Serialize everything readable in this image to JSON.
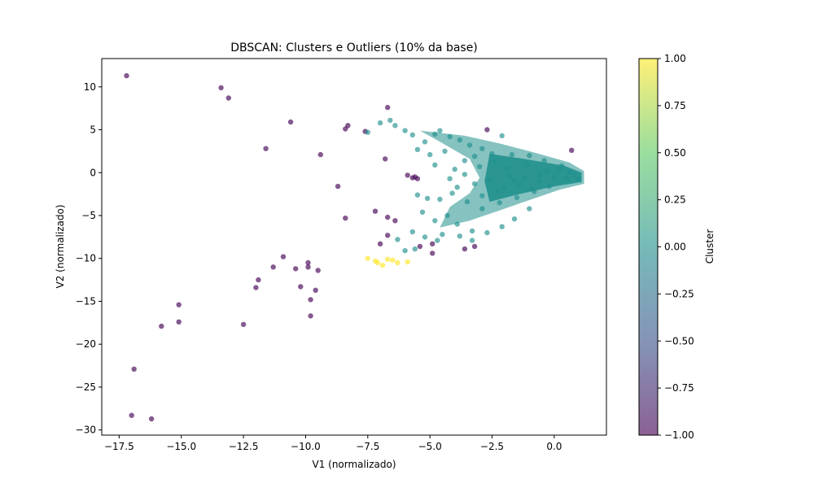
{
  "chart_data": {
    "type": "scatter",
    "title": "DBSCAN: Clusters e Outliers (10% da base)",
    "xlabel": "V1 (normalizado)",
    "ylabel": "V2 (normalizado)",
    "xlim": [
      -18.2,
      2.1
    ],
    "ylim": [
      -30.6,
      13.3
    ],
    "xticks": [
      -17.5,
      -15.0,
      -12.5,
      -10.0,
      -7.5,
      -5.0,
      -2.5,
      0.0
    ],
    "xtick_labels": [
      "−17.5",
      "−15.0",
      "−12.5",
      "−10.0",
      "−7.5",
      "−5.0",
      "−2.5",
      "0.0"
    ],
    "yticks": [
      10,
      5,
      0,
      -5,
      -10,
      -15,
      -20,
      -25,
      -30
    ],
    "ytick_labels": [
      "10",
      "5",
      "0",
      "−5",
      "−10",
      "−15",
      "−20",
      "−25",
      "−30"
    ],
    "grid": false,
    "colorbar": {
      "label": "Cluster",
      "range": [
        -1.0,
        1.0
      ],
      "ticks": [
        1.0,
        0.75,
        0.5,
        0.25,
        0.0,
        -0.25,
        -0.5,
        -0.75,
        -1.0
      ],
      "tick_labels": [
        "1.00",
        "0.75",
        "0.50",
        "0.25",
        "0.00",
        "−0.25",
        "−0.50",
        "−0.75",
        "−1.00"
      ],
      "colormap": [
        "#440154",
        "#3b528b",
        "#21908d",
        "#5dc963",
        "#fde725"
      ]
    },
    "series": [
      {
        "cluster": -1,
        "color": "#440154",
        "points": [
          [
            -17.2,
            11.3
          ],
          [
            -13.4,
            9.9
          ],
          [
            -13.1,
            8.7
          ],
          [
            -10.6,
            5.9
          ],
          [
            -11.6,
            2.8
          ],
          [
            -9.4,
            2.1
          ],
          [
            -8.3,
            5.5
          ],
          [
            -8.4,
            5.1
          ],
          [
            -7.6,
            4.8
          ],
          [
            -6.7,
            7.6
          ],
          [
            -2.7,
            5.0
          ],
          [
            0.7,
            2.6
          ],
          [
            -6.8,
            1.6
          ],
          [
            -5.9,
            -0.3
          ],
          [
            -5.6,
            -0.5
          ],
          [
            -5.7,
            -0.6
          ],
          [
            -5.5,
            -0.7
          ],
          [
            -8.7,
            -1.6
          ],
          [
            -7.2,
            -4.5
          ],
          [
            -6.7,
            -5.2
          ],
          [
            -6.4,
            -5.6
          ],
          [
            -8.4,
            -5.3
          ],
          [
            -6.7,
            -7.3
          ],
          [
            -7.0,
            -8.3
          ],
          [
            -4.9,
            -8.3
          ],
          [
            -5.4,
            -8.6
          ],
          [
            -4.9,
            -9.4
          ],
          [
            -3.2,
            -8.6
          ],
          [
            -3.6,
            -8.9
          ],
          [
            -10.9,
            -9.8
          ],
          [
            -11.3,
            -11.0
          ],
          [
            -10.4,
            -11.2
          ],
          [
            -9.9,
            -10.5
          ],
          [
            -9.9,
            -11.0
          ],
          [
            -9.5,
            -11.4
          ],
          [
            -11.9,
            -12.5
          ],
          [
            -12.0,
            -13.4
          ],
          [
            -10.2,
            -13.3
          ],
          [
            -9.6,
            -13.7
          ],
          [
            -9.8,
            -14.8
          ],
          [
            -15.1,
            -15.4
          ],
          [
            -15.8,
            -17.9
          ],
          [
            -15.1,
            -17.4
          ],
          [
            -12.5,
            -17.7
          ],
          [
            -9.8,
            -16.7
          ],
          [
            -16.9,
            -22.9
          ],
          [
            -17.0,
            -28.3
          ],
          [
            -16.2,
            -28.7
          ]
        ]
      },
      {
        "cluster": 0,
        "color": "#21908d",
        "points": [
          [
            -7.5,
            4.7
          ],
          [
            -7.0,
            5.8
          ],
          [
            -6.6,
            6.1
          ],
          [
            -6.4,
            5.5
          ],
          [
            -6.0,
            4.9
          ],
          [
            -5.7,
            4.4
          ],
          [
            -5.2,
            3.6
          ],
          [
            -5.5,
            2.7
          ],
          [
            -4.8,
            4.5
          ],
          [
            -4.6,
            4.9
          ],
          [
            -4.2,
            4.2
          ],
          [
            -3.8,
            3.8
          ],
          [
            -3.4,
            3.2
          ],
          [
            -2.9,
            2.8
          ],
          [
            -2.1,
            4.3
          ],
          [
            -1.7,
            2.1
          ],
          [
            -4.8,
            0.9
          ],
          [
            -4.0,
            0.4
          ],
          [
            -3.6,
            1.4
          ],
          [
            -3.0,
            0.7
          ],
          [
            -5.0,
            2.1
          ],
          [
            -4.4,
            2.5
          ],
          [
            -3.2,
            1.9
          ],
          [
            -2.4,
            1.3
          ],
          [
            -4.2,
            -0.7
          ],
          [
            -3.6,
            -0.2
          ],
          [
            -3.2,
            -1.3
          ],
          [
            -2.6,
            -0.9
          ],
          [
            -1.8,
            -0.4
          ],
          [
            -1.2,
            -0.6
          ],
          [
            -0.6,
            -0.3
          ],
          [
            0.0,
            -0.5
          ],
          [
            0.5,
            -0.7
          ],
          [
            1.0,
            -0.7
          ],
          [
            0.3,
            0.8
          ],
          [
            -0.4,
            1.4
          ],
          [
            -1.0,
            2.0
          ],
          [
            -0.2,
            -1.6
          ],
          [
            -0.8,
            -2.2
          ],
          [
            -1.5,
            -2.9
          ],
          [
            -2.2,
            -3.5
          ],
          [
            -2.9,
            -4.2
          ],
          [
            -3.5,
            -3.4
          ],
          [
            -4.1,
            -2.4
          ],
          [
            -4.6,
            -3.1
          ],
          [
            -5.1,
            -3.0
          ],
          [
            -5.5,
            -2.6
          ],
          [
            -5.3,
            -4.6
          ],
          [
            -4.8,
            -5.6
          ],
          [
            -4.3,
            -5.0
          ],
          [
            -3.9,
            -6.0
          ],
          [
            -3.3,
            -6.8
          ],
          [
            -2.7,
            -7.0
          ],
          [
            -2.1,
            -6.3
          ],
          [
            -1.6,
            -5.4
          ],
          [
            -1.0,
            -4.2
          ],
          [
            -5.7,
            -6.9
          ],
          [
            -5.2,
            -7.5
          ],
          [
            -4.7,
            -7.9
          ],
          [
            -6.3,
            -7.8
          ],
          [
            -6.0,
            -9.1
          ],
          [
            -5.6,
            -8.9
          ],
          [
            -4.5,
            -7.2
          ],
          [
            -3.8,
            -7.4
          ],
          [
            -3.3,
            -7.9
          ],
          [
            -2.3,
            -2.1
          ],
          [
            -1.4,
            -1.4
          ],
          [
            -0.6,
            -1.0
          ],
          [
            0.8,
            -0.2
          ],
          [
            0.2,
            0.3
          ],
          [
            -2.9,
            -2.7
          ],
          [
            -1.9,
            0.5
          ],
          [
            -1.1,
            0.9
          ],
          [
            -2.5,
            2.2
          ],
          [
            -3.9,
            -1.7
          ],
          [
            0.6,
            0.1
          ],
          [
            -0.3,
            0.2
          ],
          [
            -1.6,
            -0.9
          ],
          [
            -2.0,
            -1.7
          ],
          [
            -0.9,
            -1.9
          ]
        ]
      },
      {
        "cluster": 1,
        "color": "#fde725",
        "points": [
          [
            -7.5,
            -10.0
          ],
          [
            -7.1,
            -10.5
          ],
          [
            -6.9,
            -10.8
          ],
          [
            -6.7,
            -10.1
          ],
          [
            -6.5,
            -10.2
          ],
          [
            -6.3,
            -10.5
          ],
          [
            -5.9,
            -10.4
          ],
          [
            -7.2,
            -10.3
          ]
        ]
      }
    ]
  }
}
